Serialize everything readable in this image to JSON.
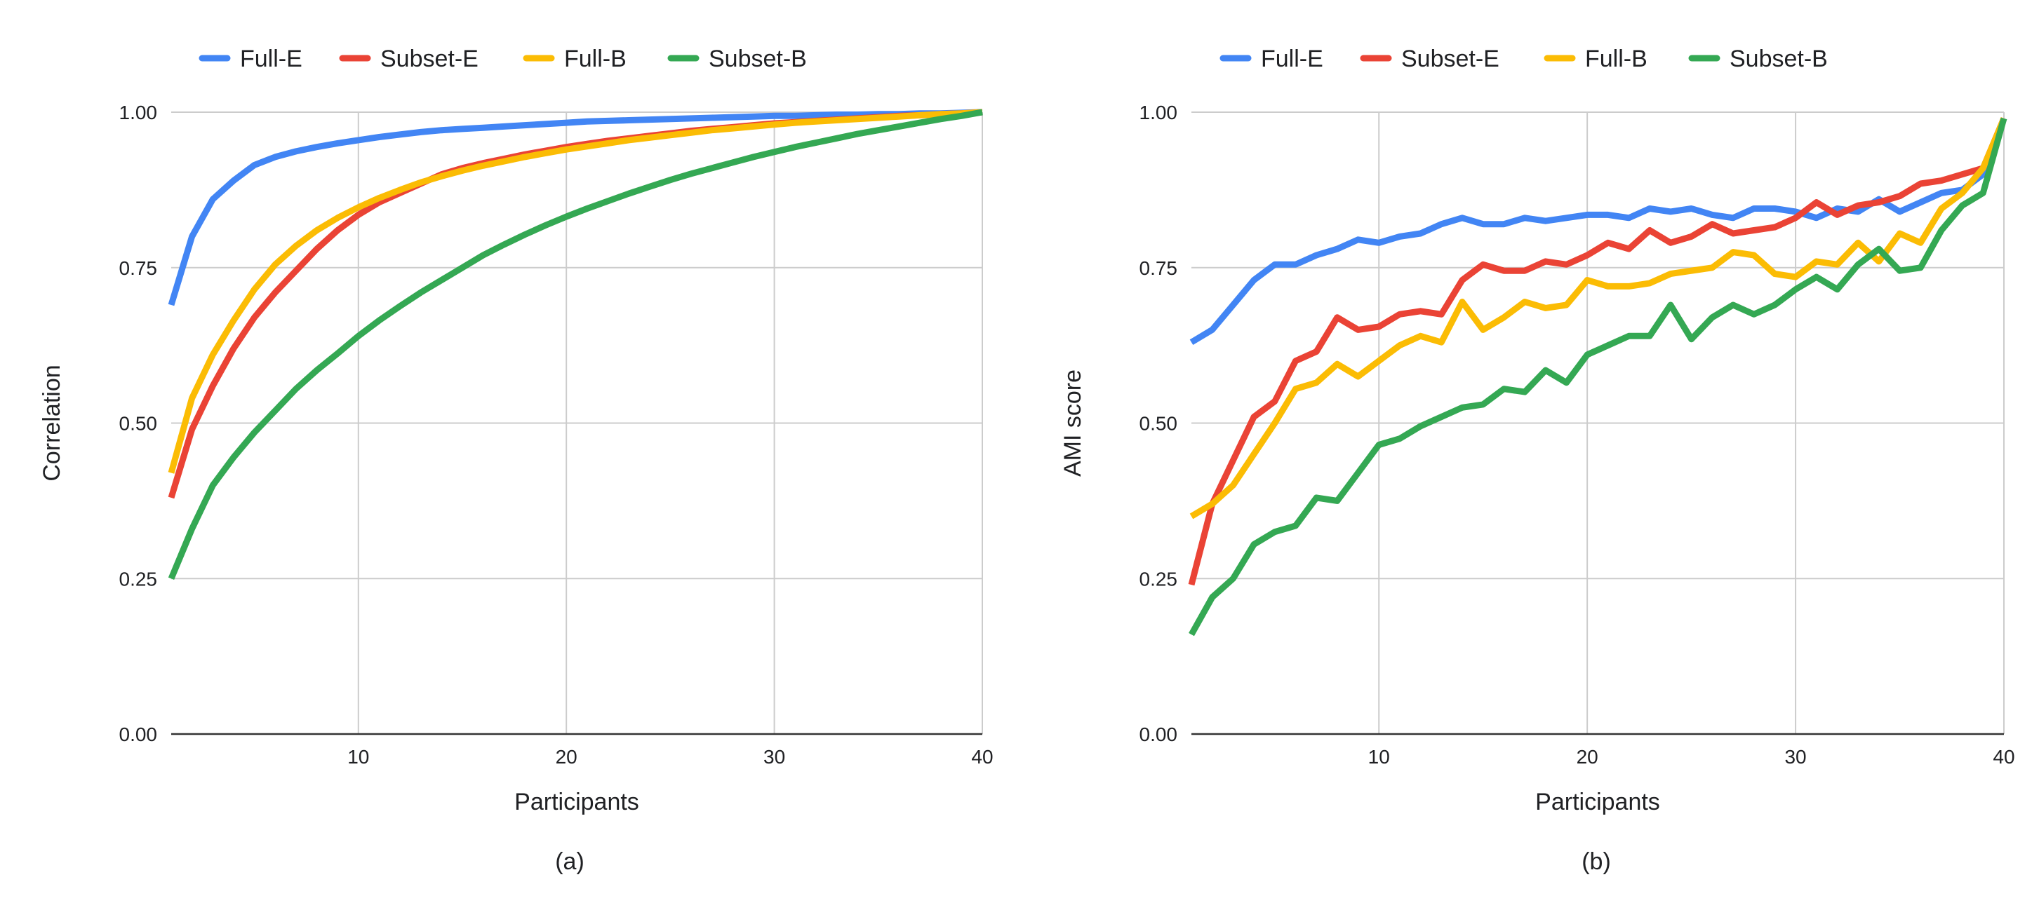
{
  "chart_data": [
    {
      "type": "line",
      "caption": "(a)",
      "xlabel": "Participants",
      "ylabel": "Correlation",
      "xlim": [
        1,
        40
      ],
      "ylim": [
        0,
        1
      ],
      "xticks": [
        10,
        20,
        30,
        40
      ],
      "yticks": [
        "0.00",
        "0.25",
        "0.50",
        "0.75",
        "1.00"
      ],
      "grid": true,
      "legend": "top",
      "x": [
        1,
        2,
        3,
        4,
        5,
        6,
        7,
        8,
        9,
        10,
        11,
        12,
        13,
        14,
        15,
        16,
        17,
        18,
        19,
        20,
        21,
        22,
        23,
        24,
        25,
        26,
        27,
        28,
        29,
        30,
        31,
        32,
        33,
        34,
        35,
        36,
        37,
        38,
        39,
        40
      ],
      "series": [
        {
          "name": "Full-E",
          "color": "#4285F4",
          "values": [
            0.69,
            0.8,
            0.86,
            0.89,
            0.915,
            0.928,
            0.937,
            0.944,
            0.95,
            0.955,
            0.96,
            0.964,
            0.968,
            0.971,
            0.973,
            0.975,
            0.977,
            0.979,
            0.981,
            0.983,
            0.985,
            0.986,
            0.987,
            0.988,
            0.989,
            0.99,
            0.991,
            0.992,
            0.993,
            0.994,
            0.994,
            0.995,
            0.996,
            0.996,
            0.997,
            0.997,
            0.998,
            0.998,
            0.999,
            1.0
          ]
        },
        {
          "name": "Subset-E",
          "color": "#EA4335",
          "values": [
            0.38,
            0.49,
            0.56,
            0.62,
            0.67,
            0.71,
            0.745,
            0.78,
            0.81,
            0.835,
            0.855,
            0.87,
            0.885,
            0.9,
            0.91,
            0.918,
            0.925,
            0.932,
            0.938,
            0.944,
            0.949,
            0.954,
            0.958,
            0.962,
            0.966,
            0.97,
            0.973,
            0.976,
            0.979,
            0.982,
            0.984,
            0.986,
            0.988,
            0.99,
            0.992,
            0.994,
            0.995,
            0.997,
            0.998,
            1.0
          ]
        },
        {
          "name": "Full-B",
          "color": "#FBBC04",
          "values": [
            0.42,
            0.54,
            0.61,
            0.665,
            0.715,
            0.755,
            0.785,
            0.81,
            0.83,
            0.847,
            0.862,
            0.875,
            0.887,
            0.897,
            0.906,
            0.914,
            0.921,
            0.928,
            0.934,
            0.94,
            0.945,
            0.95,
            0.955,
            0.959,
            0.963,
            0.967,
            0.971,
            0.974,
            0.977,
            0.98,
            0.983,
            0.985,
            0.987,
            0.989,
            0.991,
            0.993,
            0.995,
            0.997,
            0.998,
            1.0
          ]
        },
        {
          "name": "Subset-B",
          "color": "#34A853",
          "values": [
            0.25,
            0.33,
            0.4,
            0.445,
            0.485,
            0.52,
            0.555,
            0.585,
            0.612,
            0.64,
            0.665,
            0.688,
            0.71,
            0.73,
            0.75,
            0.77,
            0.787,
            0.803,
            0.818,
            0.832,
            0.845,
            0.857,
            0.869,
            0.88,
            0.891,
            0.901,
            0.91,
            0.919,
            0.928,
            0.936,
            0.944,
            0.951,
            0.958,
            0.965,
            0.971,
            0.977,
            0.983,
            0.989,
            0.994,
            1.0
          ]
        }
      ]
    },
    {
      "type": "line",
      "caption": "(b)",
      "xlabel": "Participants",
      "ylabel": "AMI score",
      "xlim": [
        1,
        40
      ],
      "ylim": [
        0,
        1
      ],
      "xticks": [
        10,
        20,
        30,
        40
      ],
      "yticks": [
        "0.00",
        "0.25",
        "0.50",
        "0.75",
        "1.00"
      ],
      "grid": true,
      "legend": "top",
      "x": [
        1,
        2,
        3,
        4,
        5,
        6,
        7,
        8,
        9,
        10,
        11,
        12,
        13,
        14,
        15,
        16,
        17,
        18,
        19,
        20,
        21,
        22,
        23,
        24,
        25,
        26,
        27,
        28,
        29,
        30,
        31,
        32,
        33,
        34,
        35,
        36,
        37,
        38,
        39,
        40
      ],
      "series": [
        {
          "name": "Full-E",
          "color": "#4285F4",
          "values": [
            0.63,
            0.65,
            0.69,
            0.73,
            0.755,
            0.755,
            0.77,
            0.78,
            0.795,
            0.79,
            0.8,
            0.805,
            0.82,
            0.83,
            0.82,
            0.82,
            0.83,
            0.825,
            0.83,
            0.835,
            0.835,
            0.83,
            0.845,
            0.84,
            0.845,
            0.835,
            0.83,
            0.845,
            0.845,
            0.84,
            0.83,
            0.845,
            0.84,
            0.86,
            0.84,
            0.855,
            0.87,
            0.875,
            0.9,
            0.99
          ]
        },
        {
          "name": "Subset-E",
          "color": "#EA4335",
          "values": [
            0.24,
            0.37,
            0.44,
            0.51,
            0.535,
            0.6,
            0.615,
            0.67,
            0.65,
            0.655,
            0.675,
            0.68,
            0.675,
            0.73,
            0.755,
            0.745,
            0.745,
            0.76,
            0.755,
            0.77,
            0.79,
            0.78,
            0.81,
            0.79,
            0.8,
            0.82,
            0.805,
            0.81,
            0.815,
            0.83,
            0.855,
            0.835,
            0.85,
            0.855,
            0.865,
            0.885,
            0.89,
            0.9,
            0.91,
            0.99
          ]
        },
        {
          "name": "Full-B",
          "color": "#FBBC04",
          "values": [
            0.35,
            0.37,
            0.4,
            0.45,
            0.5,
            0.555,
            0.565,
            0.595,
            0.575,
            0.6,
            0.625,
            0.64,
            0.63,
            0.695,
            0.65,
            0.67,
            0.695,
            0.685,
            0.69,
            0.73,
            0.72,
            0.72,
            0.725,
            0.74,
            0.745,
            0.75,
            0.775,
            0.77,
            0.74,
            0.735,
            0.76,
            0.755,
            0.79,
            0.76,
            0.805,
            0.79,
            0.845,
            0.87,
            0.91,
            0.99
          ]
        },
        {
          "name": "Subset-B",
          "color": "#34A853",
          "values": [
            0.16,
            0.22,
            0.25,
            0.305,
            0.325,
            0.335,
            0.38,
            0.375,
            0.42,
            0.465,
            0.475,
            0.495,
            0.51,
            0.525,
            0.53,
            0.555,
            0.55,
            0.585,
            0.565,
            0.61,
            0.625,
            0.64,
            0.64,
            0.69,
            0.635,
            0.67,
            0.69,
            0.675,
            0.69,
            0.715,
            0.735,
            0.715,
            0.755,
            0.78,
            0.745,
            0.75,
            0.81,
            0.85,
            0.87,
            0.99
          ]
        }
      ]
    }
  ]
}
